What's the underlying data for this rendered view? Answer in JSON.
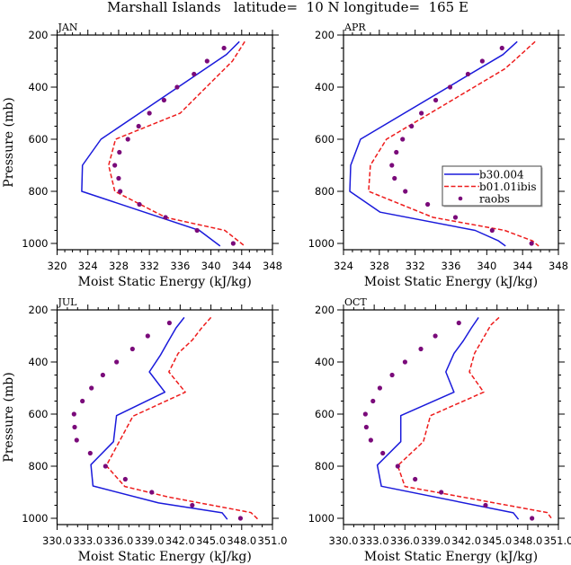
{
  "chart_data": {
    "type": "line",
    "title": "Marshall Islands   latitude=  10 N longitude=  165 E",
    "legend": {
      "placement": "inside-right (APR panel)",
      "entries": [
        {
          "name": "b30.004",
          "style": "solid-line",
          "color": "#1a1adb"
        },
        {
          "name": "b01.01ibis",
          "style": "dashed-line",
          "color": "#ee1c1c"
        },
        {
          "name": "raobs",
          "style": "dot",
          "color": "#7a0a7a"
        }
      ]
    },
    "colors": {
      "b30_004": "#1a1adb",
      "b01_01ibis": "#ee1c1c",
      "raobs": "#7a0a7a",
      "axis": "#000000"
    },
    "panels": [
      {
        "label": "JAN",
        "xlabel": "Moist Static Energy (kJ/kg)",
        "ylabel": "Pressure (mb)",
        "xlim": [
          320,
          348
        ],
        "ylim": [
          200,
          1025
        ],
        "y_reversed": true,
        "xticks": [
          320,
          324,
          328,
          332,
          336,
          340,
          344,
          348
        ],
        "xtick_labels": [
          "320",
          "324",
          "328",
          "332",
          "336",
          "340",
          "344",
          "348"
        ],
        "x_minor_step": 1,
        "yticks": [
          200,
          400,
          600,
          800,
          1000
        ],
        "ytick_labels": [
          "200",
          "400",
          "600",
          "800",
          "1000"
        ],
        "y_minor_step": 50,
        "series": [
          {
            "name": "b30.004",
            "points": [
              [
                343.7,
                225
              ],
              [
                342.0,
                275
              ],
              [
                325.7,
                600
              ],
              [
                323.3,
                700
              ],
              [
                323.2,
                800
              ],
              [
                338.5,
                950
              ],
              [
                341.2,
                1010
              ]
            ]
          },
          {
            "name": "b01.01ibis",
            "points": [
              [
                344.4,
                225
              ],
              [
                342.8,
                300
              ],
              [
                339.4,
                400
              ],
              [
                336.0,
                500
              ],
              [
                327.6,
                600
              ],
              [
                326.7,
                700
              ],
              [
                327.5,
                800
              ],
              [
                334.1,
                900
              ],
              [
                341.8,
                950
              ],
              [
                344.4,
                1010
              ]
            ]
          },
          {
            "name": "raobs",
            "points": [
              [
                341.7,
                250
              ],
              [
                339.5,
                300
              ],
              [
                337.8,
                350
              ],
              [
                335.6,
                400
              ],
              [
                333.9,
                450
              ],
              [
                332.0,
                500
              ],
              [
                330.6,
                550
              ],
              [
                329.2,
                600
              ],
              [
                328.1,
                650
              ],
              [
                327.5,
                700
              ],
              [
                328.0,
                750
              ],
              [
                328.2,
                800
              ],
              [
                330.7,
                850
              ],
              [
                334.1,
                900
              ],
              [
                338.2,
                950
              ],
              [
                342.9,
                1000
              ]
            ]
          }
        ]
      },
      {
        "label": "APR",
        "xlabel": "Moist Static Energy (kJ/kg)",
        "ylabel": "",
        "xlim": [
          324,
          348
        ],
        "ylim": [
          200,
          1025
        ],
        "y_reversed": true,
        "xticks": [
          324,
          328,
          332,
          336,
          340,
          344,
          348
        ],
        "xtick_labels": [
          "324",
          "328",
          "332",
          "336",
          "340",
          "344",
          "348"
        ],
        "x_minor_step": 1,
        "yticks": [
          200,
          400,
          600,
          800,
          1000
        ],
        "ytick_labels": [
          "200",
          "400",
          "600",
          "800",
          "1000"
        ],
        "y_minor_step": 50,
        "has_legend": true,
        "series": [
          {
            "name": "b30.004",
            "points": [
              [
                343.4,
                225
              ],
              [
                341.8,
                275
              ],
              [
                325.9,
                600
              ],
              [
                324.8,
                700
              ],
              [
                324.7,
                800
              ],
              [
                328.1,
                880
              ],
              [
                338.7,
                950
              ],
              [
                341.3,
                990
              ],
              [
                342.1,
                1010
              ]
            ]
          },
          {
            "name": "b01.01ibis",
            "points": [
              [
                345.4,
                225
              ],
              [
                343.0,
                300
              ],
              [
                342.0,
                330
              ],
              [
                328.8,
                600
              ],
              [
                327.0,
                700
              ],
              [
                326.8,
                800
              ],
              [
                334.0,
                900
              ],
              [
                342.0,
                950
              ],
              [
                345.1,
                990
              ],
              [
                345.8,
                1010
              ]
            ]
          },
          {
            "name": "raobs",
            "points": [
              [
                341.7,
                250
              ],
              [
                339.5,
                300
              ],
              [
                337.9,
                350
              ],
              [
                335.9,
                400
              ],
              [
                334.3,
                450
              ],
              [
                332.7,
                500
              ],
              [
                331.6,
                550
              ],
              [
                330.6,
                600
              ],
              [
                329.9,
                650
              ],
              [
                329.4,
                700
              ],
              [
                329.7,
                750
              ],
              [
                330.9,
                800
              ],
              [
                333.4,
                850
              ],
              [
                336.5,
                900
              ],
              [
                340.6,
                950
              ],
              [
                345.0,
                1000
              ]
            ]
          }
        ]
      },
      {
        "label": "JUL",
        "xlabel": "Moist Static Energy (kJ/kg)",
        "ylabel": "Pressure (mb)",
        "xlim": [
          330,
          351
        ],
        "ylim": [
          200,
          1025
        ],
        "y_reversed": true,
        "xticks": [
          330,
          333,
          336,
          339,
          342,
          345,
          348,
          351
        ],
        "xtick_labels": [
          "330.0",
          "333.0",
          "336.0",
          "339.0",
          "342.0",
          "345.0",
          "348.0",
          "351.0"
        ],
        "x_minor_step": 1,
        "yticks": [
          200,
          400,
          600,
          800,
          1000
        ],
        "ytick_labels": [
          "200",
          "400",
          "600",
          "800",
          "1000"
        ],
        "y_minor_step": 50,
        "series": [
          {
            "name": "b30.004",
            "points": [
              [
                342.4,
                229
              ],
              [
                341.6,
                269
              ],
              [
                340.8,
                323
              ],
              [
                340.1,
                372
              ],
              [
                339.0,
                438
              ],
              [
                340.5,
                516
              ],
              [
                335.8,
                606
              ],
              [
                335.5,
                706
              ],
              [
                333.3,
                794
              ],
              [
                333.5,
                876
              ],
              [
                339.9,
                941
              ],
              [
                346.1,
                979
              ],
              [
                346.6,
                1004
              ]
            ]
          },
          {
            "name": "b01.01ibis",
            "points": [
              [
                345.0,
                229
              ],
              [
                344.1,
                269
              ],
              [
                343.2,
                315
              ],
              [
                341.8,
                367
              ],
              [
                340.9,
                438
              ],
              [
                342.5,
                516
              ],
              [
                337.4,
                608
              ],
              [
                334.8,
                798
              ],
              [
                336.6,
                878
              ],
              [
                340.8,
                918
              ],
              [
                348.9,
                978
              ],
              [
                349.6,
                1004
              ]
            ]
          },
          {
            "name": "raobs",
            "points": [
              [
                340.95,
                250
              ],
              [
                338.84,
                300
              ],
              [
                337.35,
                350
              ],
              [
                335.8,
                400
              ],
              [
                334.46,
                450
              ],
              [
                333.35,
                500
              ],
              [
                332.47,
                550
              ],
              [
                331.65,
                600
              ],
              [
                331.71,
                650
              ],
              [
                331.91,
                700
              ],
              [
                333.23,
                750
              ],
              [
                334.72,
                800
              ],
              [
                336.65,
                850
              ],
              [
                339.23,
                900
              ],
              [
                343.18,
                950
              ],
              [
                347.88,
                1000
              ]
            ]
          }
        ]
      },
      {
        "label": "OCT",
        "xlabel": "Moist Static Energy (kJ/kg)",
        "ylabel": "",
        "xlim": [
          330,
          351
        ],
        "ylim": [
          200,
          1025
        ],
        "y_reversed": true,
        "xticks": [
          330,
          333,
          336,
          339,
          342,
          345,
          348,
          351
        ],
        "xtick_labels": [
          "330.0",
          "333.0",
          "336.0",
          "339.0",
          "342.0",
          "345.0",
          "348.0",
          "351.0"
        ],
        "x_minor_step": 1,
        "yticks": [
          200,
          400,
          600,
          800,
          1000
        ],
        "ytick_labels": [
          "200",
          "400",
          "600",
          "800",
          "1000"
        ],
        "y_minor_step": 50,
        "series": [
          {
            "name": "b30.004",
            "points": [
              [
                343.2,
                229
              ],
              [
                342.5,
                269
              ],
              [
                341.7,
                319
              ],
              [
                340.8,
                367
              ],
              [
                340.0,
                438
              ],
              [
                340.8,
                516
              ],
              [
                335.6,
                606
              ],
              [
                335.6,
                706
              ],
              [
                333.3,
                796
              ],
              [
                333.7,
                877
              ],
              [
                346.6,
                979
              ],
              [
                347.1,
                1004
              ]
            ]
          },
          {
            "name": "b01.01ibis",
            "points": [
              [
                345.2,
                229
              ],
              [
                344.4,
                258
              ],
              [
                342.8,
                367
              ],
              [
                342.3,
                438
              ],
              [
                343.7,
                516
              ],
              [
                338.5,
                606
              ],
              [
                337.8,
                706
              ],
              [
                335.3,
                798
              ],
              [
                336.0,
                878
              ],
              [
                349.9,
                978
              ],
              [
                350.3,
                999
              ]
            ]
          },
          {
            "name": "raobs",
            "points": [
              [
                341.27,
                250
              ],
              [
                338.97,
                300
              ],
              [
                337.56,
                350
              ],
              [
                336.01,
                400
              ],
              [
                334.75,
                450
              ],
              [
                333.55,
                500
              ],
              [
                332.88,
                550
              ],
              [
                332.14,
                600
              ],
              [
                332.23,
                650
              ],
              [
                332.67,
                700
              ],
              [
                333.84,
                750
              ],
              [
                335.3,
                800
              ],
              [
                337.0,
                850
              ],
              [
                339.55,
                900
              ],
              [
                343.88,
                950
              ],
              [
                348.42,
                1000
              ]
            ]
          }
        ]
      }
    ]
  }
}
